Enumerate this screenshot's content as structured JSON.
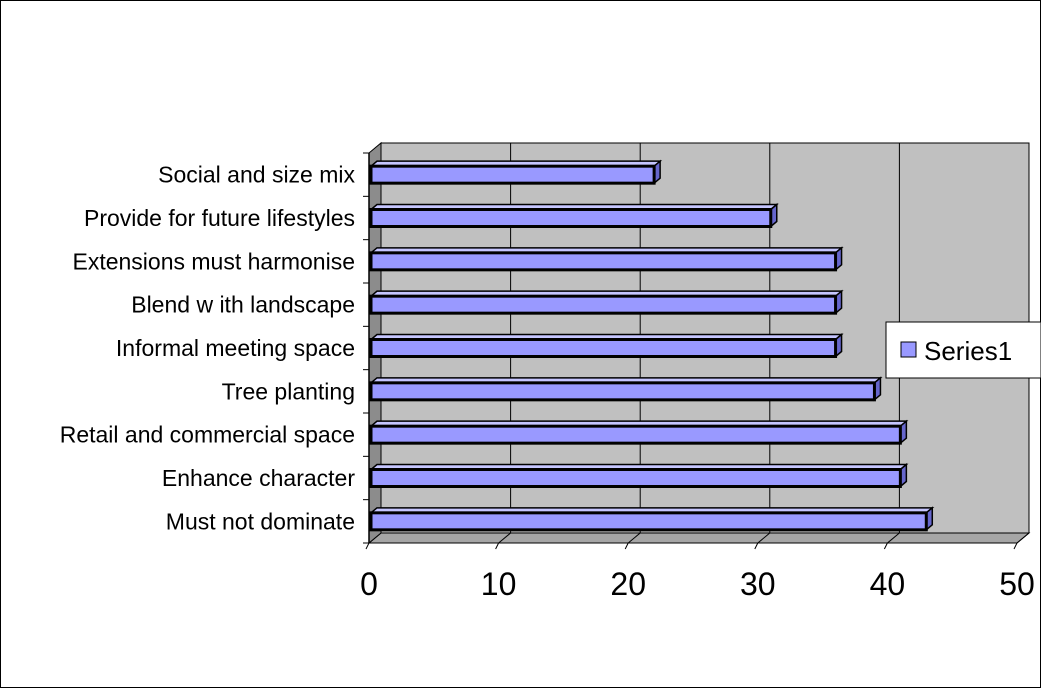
{
  "chart_data": {
    "type": "bar",
    "orientation": "horizontal",
    "categories": [
      "Social and size mix",
      "Provide for future lifestyles",
      "Extensions must harmonise",
      "Blend w ith landscape",
      "Informal meeting space",
      "Tree planting",
      "Retail and commercial space",
      "Enhance character",
      "Must not dominate"
    ],
    "series": [
      {
        "name": "Series1",
        "values": [
          22,
          31,
          36,
          36,
          36,
          39,
          41,
          41,
          43
        ]
      }
    ],
    "xlim": [
      0,
      50
    ],
    "xticks": [
      "0",
      "10",
      "20",
      "30",
      "40",
      "50"
    ],
    "grid": true,
    "three_d": true,
    "legend_position": "right",
    "colors": {
      "bar_front": "#9999FF",
      "bar_top": "#C6C6FF",
      "bar_side": "#6666CC",
      "bar_outline": "#000000",
      "plot_wall": "#C0C0C0",
      "plot_floor": "#A6A6A6",
      "grid": "#000000"
    }
  }
}
